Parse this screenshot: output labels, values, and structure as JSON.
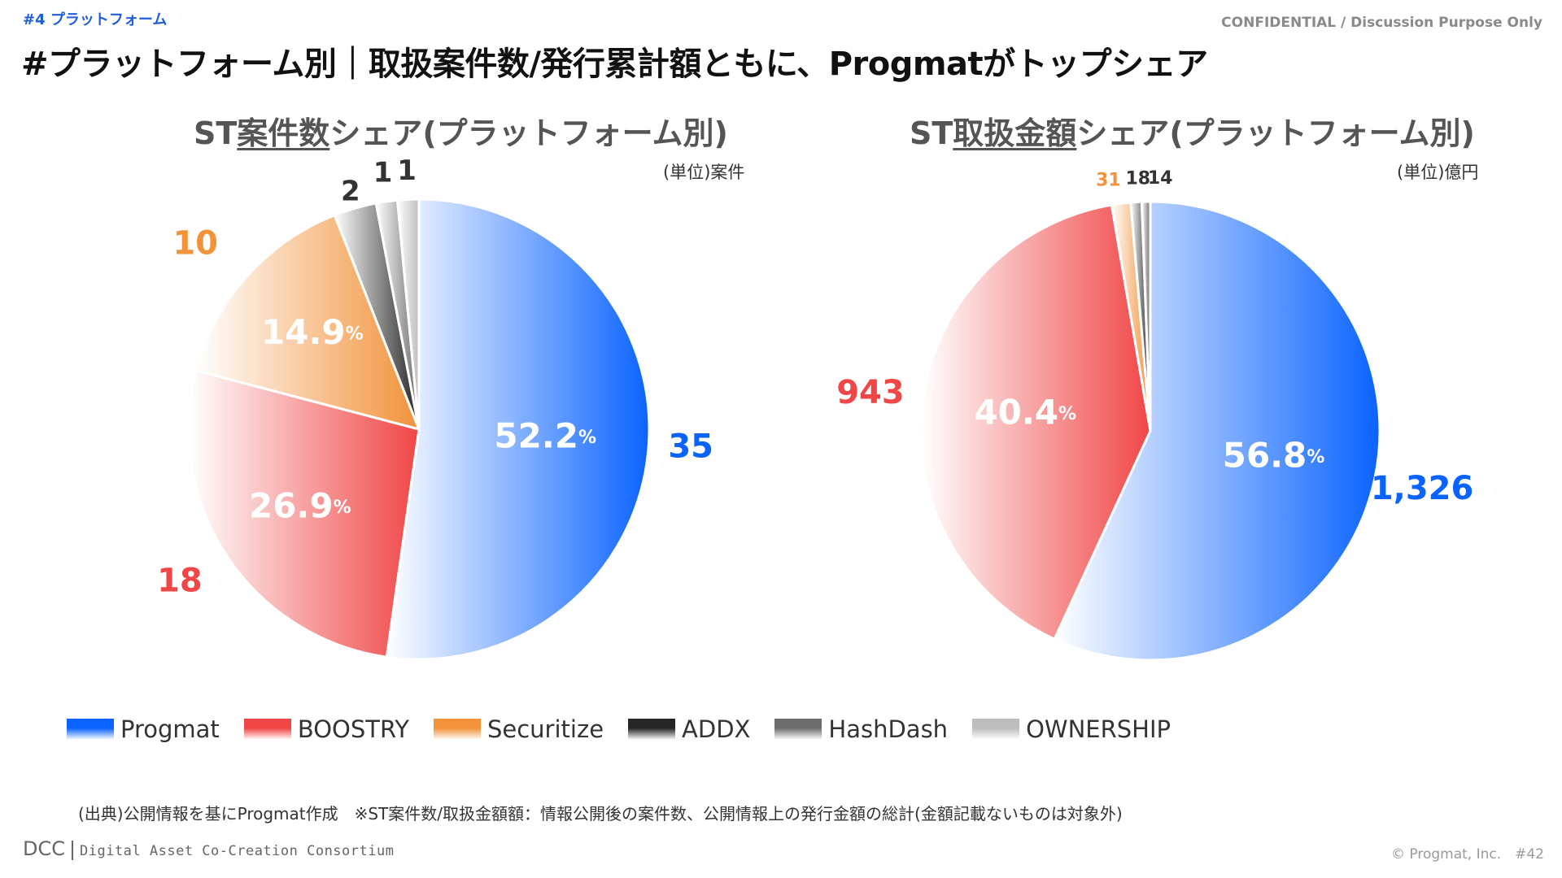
{
  "header": {
    "section_tag": "#4 プラットフォーム",
    "confidential": "CONFIDENTIAL / Discussion Purpose Only",
    "headline": "#プラットフォーム別｜取扱案件数/発行累計額ともに、Progmatがトップシェア"
  },
  "charts": {
    "left": {
      "title_prefix": "ST",
      "title_underlined": "案件数",
      "title_suffix": "シェア(プラットフォーム別)",
      "unit": "(単位)案件"
    },
    "right": {
      "title_prefix": "ST",
      "title_underlined": "取扱金額",
      "title_suffix": "シェア(プラットフォーム別)",
      "unit": "(単位)億円"
    }
  },
  "colors": {
    "Progmat": "#0a63ff",
    "BOOSTRY": "#f04646",
    "Securitize": "#f2923a",
    "ADDX": "#262626",
    "HashDash": "#6e6e6e",
    "OWNERSHIP": "#bdbdbd",
    "percent_text": "#ffffff"
  },
  "chart_data": [
    {
      "type": "pie",
      "title": "ST案件数シェア(プラットフォーム別)",
      "unit": "(単位)案件",
      "slices": [
        {
          "name": "Progmat",
          "value": 35,
          "value_label": "35",
          "percent": "52.2"
        },
        {
          "name": "BOOSTRY",
          "value": 18,
          "value_label": "18",
          "percent": "26.9"
        },
        {
          "name": "Securitize",
          "value": 10,
          "value_label": "10",
          "percent": "14.9"
        },
        {
          "name": "ADDX",
          "value": 2,
          "value_label": "2",
          "percent": ""
        },
        {
          "name": "HashDash",
          "value": 1,
          "value_label": "1",
          "percent": ""
        },
        {
          "name": "OWNERSHIP",
          "value": 1,
          "value_label": "1",
          "percent": ""
        }
      ]
    },
    {
      "type": "pie",
      "title": "ST取扱金額シェア(プラットフォーム別)",
      "unit": "(単位)億円",
      "slices": [
        {
          "name": "Progmat",
          "value": 1326,
          "value_label": "1,326",
          "percent": "56.8"
        },
        {
          "name": "BOOSTRY",
          "value": 943,
          "value_label": "943",
          "percent": "40.4"
        },
        {
          "name": "Securitize",
          "value": 31,
          "value_label": "31",
          "percent": ""
        },
        {
          "name": "ADDX",
          "value": 18,
          "value_label": "18",
          "percent": ""
        },
        {
          "name": "HashDash",
          "value": 14,
          "value_label": "14",
          "percent": ""
        },
        {
          "name": "OWNERSHIP",
          "value": 0,
          "value_label": "",
          "percent": ""
        }
      ]
    }
  ],
  "percent_suffix": "%",
  "legend": [
    "Progmat",
    "BOOSTRY",
    "Securitize",
    "ADDX",
    "HashDash",
    "OWNERSHIP"
  ],
  "footer": {
    "footnote": "(出典)公開情報を基にProgmat作成　※ST案件数/取扱金額額：情報公開後の案件数、公開情報上の発行金額の総計(金額記載ないものは対象外)",
    "logo_short": "DCC",
    "logo_full": "Digital Asset Co-Creation Consortium",
    "copyright": "© Progmat, Inc.　#42"
  }
}
